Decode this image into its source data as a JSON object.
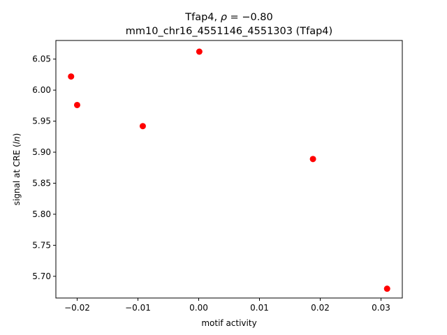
{
  "chart_data": {
    "type": "scatter",
    "title_line1": "Tfap4, ρ = −0.80",
    "title_line2": "mm10_chr16_4551146_4551303 (Tfap4)",
    "xlabel": "motif activity",
    "ylabel": "signal at CRE (ln)",
    "xlim": [
      -0.0235,
      0.0335
    ],
    "ylim": [
      5.665,
      6.08
    ],
    "xticks": [
      -0.02,
      -0.01,
      0.0,
      0.01,
      0.02,
      0.03
    ],
    "xtick_labels": [
      "−0.02",
      "−0.01",
      "0.00",
      "0.01",
      "0.02",
      "0.03"
    ],
    "yticks": [
      5.7,
      5.75,
      5.8,
      5.85,
      5.9,
      5.95,
      6.0,
      6.05
    ],
    "ytick_labels": [
      "5.70",
      "5.75",
      "5.80",
      "5.85",
      "5.90",
      "5.95",
      "6.00",
      "6.05"
    ],
    "grid": false,
    "point_color": "#ff0000",
    "points": [
      {
        "x": -0.021,
        "y": 6.022
      },
      {
        "x": -0.02,
        "y": 5.976
      },
      {
        "x": -0.0092,
        "y": 5.942
      },
      {
        "x": 0.0001,
        "y": 6.062
      },
      {
        "x": 0.0188,
        "y": 5.889
      },
      {
        "x": 0.031,
        "y": 5.68
      }
    ]
  }
}
